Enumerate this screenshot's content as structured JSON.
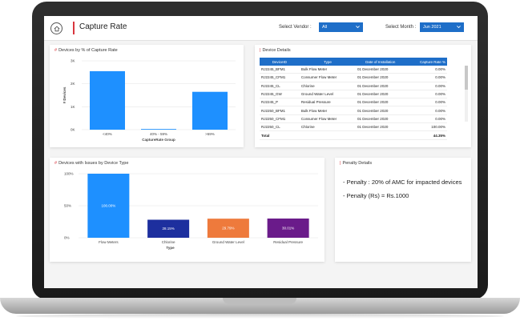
{
  "header": {
    "title": "Capture Rate",
    "vendor_label": "Select Vendor :",
    "vendor_value": "All",
    "month_label": "Select Month :",
    "month_value": "Jun 2021"
  },
  "capture_chart": {
    "title": "Devices by % of Capture Rate",
    "title_prefix": "#",
    "chart_data": {
      "type": "bar",
      "categories": [
        "<40%",
        "40% - 59%",
        ">59%"
      ],
      "values": [
        2550,
        30,
        1650
      ],
      "xlabel": "CaptureRate Group",
      "ylabel": "# Devices",
      "yticks": [
        "3K",
        "2K",
        "1K",
        "0K"
      ],
      "ylim": [
        0,
        3000
      ],
      "color": "#1e90ff"
    }
  },
  "issues_chart": {
    "title": "Devices with Issues by Device Type",
    "title_prefix": "#",
    "chart_data": {
      "type": "bar",
      "categories": [
        "Flow Meters",
        "Chlorine",
        "Ground Water Level",
        "Residual Pressure"
      ],
      "values": [
        100.0,
        28.15,
        29.79,
        30.01
      ],
      "labels": [
        "100.00%",
        "28.15%",
        "29.79%",
        "30.01%"
      ],
      "colors": [
        "#1e90ff",
        "#1d2f9e",
        "#ee7a3c",
        "#6a1b8a"
      ],
      "xlabel": "Type",
      "yticks": [
        "100%",
        "50%",
        "0%"
      ],
      "ylim": [
        0,
        100
      ]
    }
  },
  "details": {
    "title": "Device Details",
    "columns": [
      "DeviceID",
      "Type",
      "Date of Installation",
      "Capture Rate %"
    ],
    "rows": [
      [
        "RJ2245_BFM1",
        "Bulk Flow Meter",
        "01 December 2020",
        "0.00%"
      ],
      [
        "RJ2245_CFM1",
        "Consumer Flow Meter",
        "01 December 2020",
        "0.00%"
      ],
      [
        "RJ2245_CL",
        "Chlorine",
        "01 December 2020",
        "0.00%"
      ],
      [
        "RJ2245_GW",
        "Ground Water Level",
        "01 December 2020",
        "0.00%"
      ],
      [
        "RJ2245_P",
        "Residual Pressure",
        "01 December 2020",
        "0.00%"
      ],
      [
        "RJ2250_BFM1",
        "Bulk Flow Meter",
        "01 December 2020",
        "0.00%"
      ],
      [
        "RJ2250_CFM1",
        "Consumer Flow Meter",
        "01 December 2020",
        "0.00%"
      ],
      [
        "RJ2250_CL",
        "Chlorine",
        "01 December 2020",
        "100.00%"
      ]
    ],
    "total_label": "Total",
    "total_value": "44.35%"
  },
  "penalty": {
    "title": "Penalty Details",
    "line1": "- Penalty : 20% of AMC for impacted devices",
    "line2": "- Penalty (Rs) =  Rs.1000"
  }
}
